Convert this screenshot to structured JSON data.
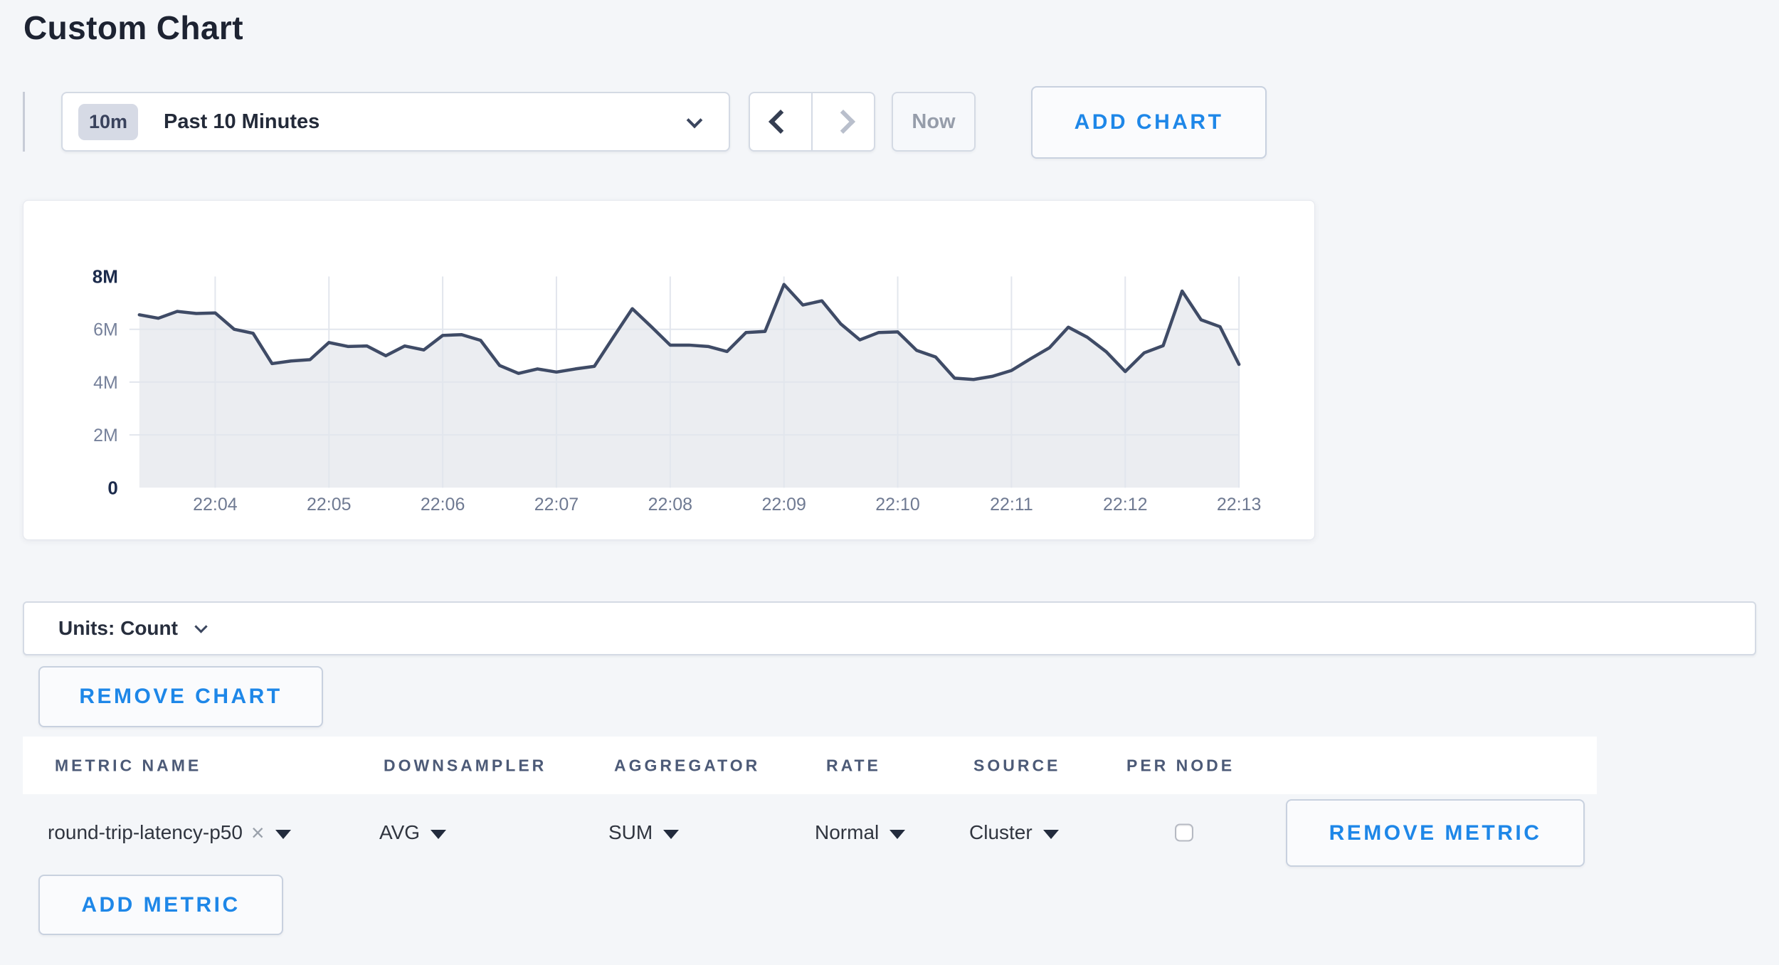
{
  "page": {
    "title": "Custom Chart"
  },
  "toolbar": {
    "time_range": {
      "badge": "10m",
      "label": "Past 10 Minutes"
    },
    "now_label": "Now",
    "add_chart_label": "ADD CHART"
  },
  "units_bar": {
    "label": "Units: Count"
  },
  "buttons": {
    "remove_chart": "REMOVE CHART",
    "add_metric": "ADD METRIC"
  },
  "icons": {
    "clear_metric": "×"
  },
  "metric_table": {
    "columns": [
      "METRIC NAME",
      "DOWNSAMPLER",
      "AGGREGATOR",
      "RATE",
      "SOURCE",
      "PER NODE"
    ],
    "rows": [
      {
        "metric_name": "round-trip-latency-p50",
        "downsampler": "AVG",
        "aggregator": "SUM",
        "rate": "Normal",
        "source": "Cluster",
        "per_node_checked": false,
        "remove_label": "REMOVE METRIC"
      }
    ]
  },
  "chart_data": {
    "type": "area",
    "title": "",
    "unit": "Count",
    "legend": "none",
    "grid": "vertical per minute; horizontal at 2M/4M/6M",
    "ylim_millions": [
      0,
      8
    ],
    "y_ticks": [
      {
        "label": "8M",
        "value_millions": 8,
        "bold": true,
        "gridline": false
      },
      {
        "label": "6M",
        "value_millions": 6,
        "bold": false,
        "gridline": true
      },
      {
        "label": "4M",
        "value_millions": 4,
        "bold": false,
        "gridline": true
      },
      {
        "label": "2M",
        "value_millions": 2,
        "bold": false,
        "gridline": true
      },
      {
        "label": "0",
        "value_millions": 0,
        "bold": true,
        "gridline": false
      }
    ],
    "x_start": "22:03:20",
    "x_interval_seconds": 10,
    "x_ticks": [
      {
        "label": "22:04",
        "index": 4
      },
      {
        "label": "22:05",
        "index": 10
      },
      {
        "label": "22:06",
        "index": 16
      },
      {
        "label": "22:07",
        "index": 22
      },
      {
        "label": "22:08",
        "index": 28
      },
      {
        "label": "22:09",
        "index": 34
      },
      {
        "label": "22:10",
        "index": 40
      },
      {
        "label": "22:11",
        "index": 46
      },
      {
        "label": "22:12",
        "index": 52
      },
      {
        "label": "22:13",
        "index": 58
      }
    ],
    "series": [
      {
        "name": "round-trip-latency-p50",
        "color": "#3f4b66",
        "fill": "#e8eaef",
        "values_millions": [
          6.55,
          6.42,
          6.68,
          6.6,
          6.62,
          6.0,
          5.85,
          4.7,
          4.8,
          4.85,
          5.5,
          5.35,
          5.37,
          5.0,
          5.37,
          5.22,
          5.77,
          5.8,
          5.58,
          4.63,
          4.33,
          4.5,
          4.38,
          4.5,
          4.6,
          5.7,
          6.78,
          6.1,
          5.4,
          5.4,
          5.35,
          5.16,
          5.88,
          5.92,
          7.7,
          6.92,
          7.08,
          6.2,
          5.6,
          5.88,
          5.9,
          5.2,
          4.95,
          4.15,
          4.1,
          4.22,
          4.44,
          4.88,
          5.3,
          6.08,
          5.7,
          5.15,
          4.4,
          5.11,
          5.38,
          7.45,
          6.36,
          6.1,
          4.67
        ]
      }
    ]
  },
  "colors": {
    "page_bg": "#f4f6f9",
    "accent_blue": "#1e87e8",
    "chart_line": "#3f4b66",
    "chart_fill": "#e8eaef",
    "gridline": "#e2e6ed",
    "axis_bold": "#1c2b4c",
    "axis_gray": "#76819b"
  }
}
